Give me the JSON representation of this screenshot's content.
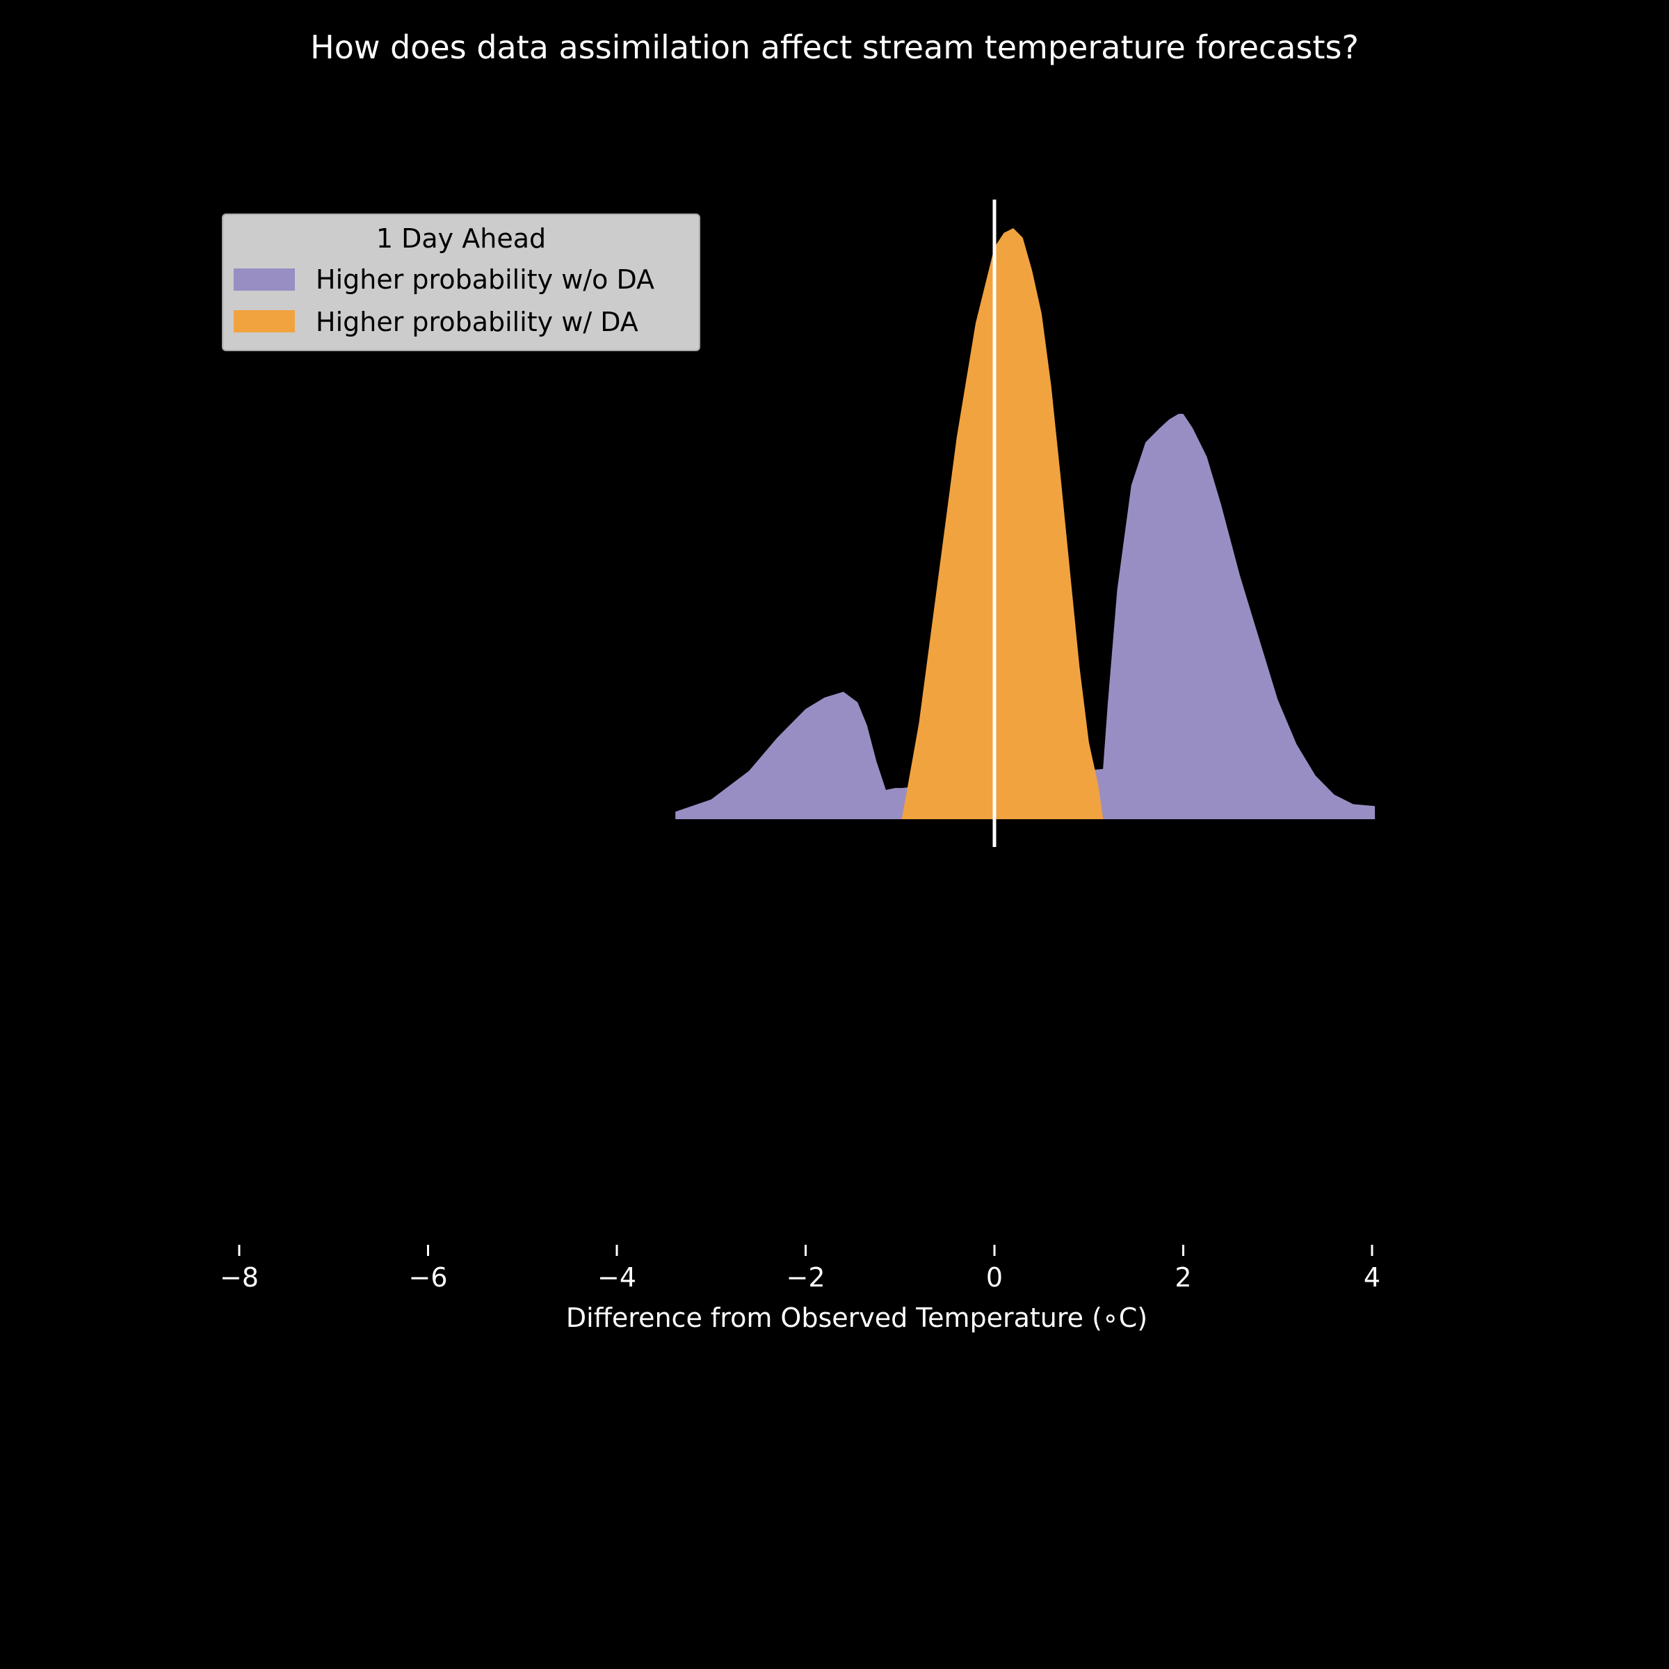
{
  "chart_data": {
    "type": "area",
    "title": "How does data assimilation affect stream temperature forecasts?",
    "xlabel": "Difference from Observed Temperature (∘C)",
    "ylabel": "",
    "xlim": [
      -8,
      4
    ],
    "xticks": [
      -8,
      -6,
      -4,
      -2,
      0,
      2,
      4
    ],
    "xtick_labels": [
      "−8",
      "−6",
      "−4",
      "−2",
      "0",
      "2",
      "4"
    ],
    "grid": false,
    "legend": {
      "title": "1 Day Ahead",
      "placement": "upper-left",
      "entries": [
        "Higher probability w/o DA",
        "Higher probability w/ DA"
      ]
    },
    "reference_line": {
      "x": 0
    },
    "ylim": [
      -0.03,
      0.65
    ],
    "series": [
      {
        "name": "Higher probability w/o DA",
        "color": "#998ec3",
        "x": [
          -3.38,
          -3.0,
          -2.6,
          -2.3,
          -2.0,
          -1.8,
          -1.6,
          -1.45,
          -1.35,
          -1.25,
          -1.15,
          -1.05,
          -0.98,
          1.15,
          1.2,
          1.3,
          1.45,
          1.6,
          1.75,
          1.85,
          1.95,
          2.0,
          2.1,
          2.25,
          2.4,
          2.6,
          2.8,
          3.0,
          3.2,
          3.4,
          3.6,
          3.8,
          4.03
        ],
        "y": [
          0.007,
          0.02,
          0.05,
          0.085,
          0.115,
          0.127,
          0.133,
          0.122,
          0.098,
          0.06,
          0.03,
          0.032,
          0.032,
          0.052,
          0.12,
          0.24,
          0.35,
          0.395,
          0.41,
          0.419,
          0.425,
          0.425,
          0.41,
          0.38,
          0.33,
          0.255,
          0.19,
          0.125,
          0.078,
          0.045,
          0.025,
          0.015,
          0.013
        ]
      },
      {
        "name": "Higher probability w/ DA",
        "color": "#f1a340",
        "x": [
          -0.98,
          -0.8,
          -0.6,
          -0.4,
          -0.2,
          0.0,
          0.1,
          0.2,
          0.3,
          0.4,
          0.5,
          0.6,
          0.7,
          0.8,
          0.9,
          1.0,
          1.1,
          1.15
        ],
        "y": [
          0.0,
          0.1,
          0.25,
          0.4,
          0.52,
          0.6,
          0.615,
          0.62,
          0.61,
          0.575,
          0.53,
          0.455,
          0.36,
          0.26,
          0.16,
          0.08,
          0.035,
          0.0
        ]
      }
    ]
  }
}
